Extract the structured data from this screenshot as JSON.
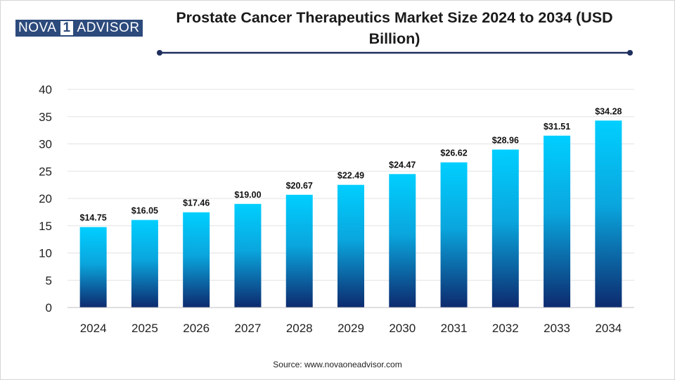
{
  "logo": {
    "part1": "NOVA",
    "part2": "1",
    "part3": "ADVISOR"
  },
  "source": "Source: www.novaoneadvisor.com",
  "colors": {
    "bar_top": "#00cfff",
    "bar_bottom": "#0d2a6e",
    "rule": "#1f2f5e",
    "logo": "#2c4a7c"
  },
  "chart_data": {
    "type": "bar",
    "title": "Prostate Cancer Therapeutics Market Size 2024 to 2034 (USD Billion)",
    "xlabel": "",
    "ylabel": "",
    "categories": [
      "2024",
      "2025",
      "2026",
      "2027",
      "2028",
      "2029",
      "2030",
      "2031",
      "2032",
      "2033",
      "2034"
    ],
    "values": [
      14.75,
      16.05,
      17.46,
      19.0,
      20.67,
      22.49,
      24.47,
      26.62,
      28.96,
      31.51,
      34.28
    ],
    "data_labels": [
      "$14.75",
      "$16.05",
      "$17.46",
      "$19.00",
      "$20.67",
      "$22.49",
      "$24.47",
      "$26.62",
      "$28.96",
      "$31.51",
      "$34.28"
    ],
    "ylim": [
      0,
      40
    ],
    "yticks": [
      "0",
      "5",
      "10",
      "15",
      "20",
      "25",
      "30",
      "35",
      "40"
    ],
    "grid": true,
    "legend": "none"
  }
}
